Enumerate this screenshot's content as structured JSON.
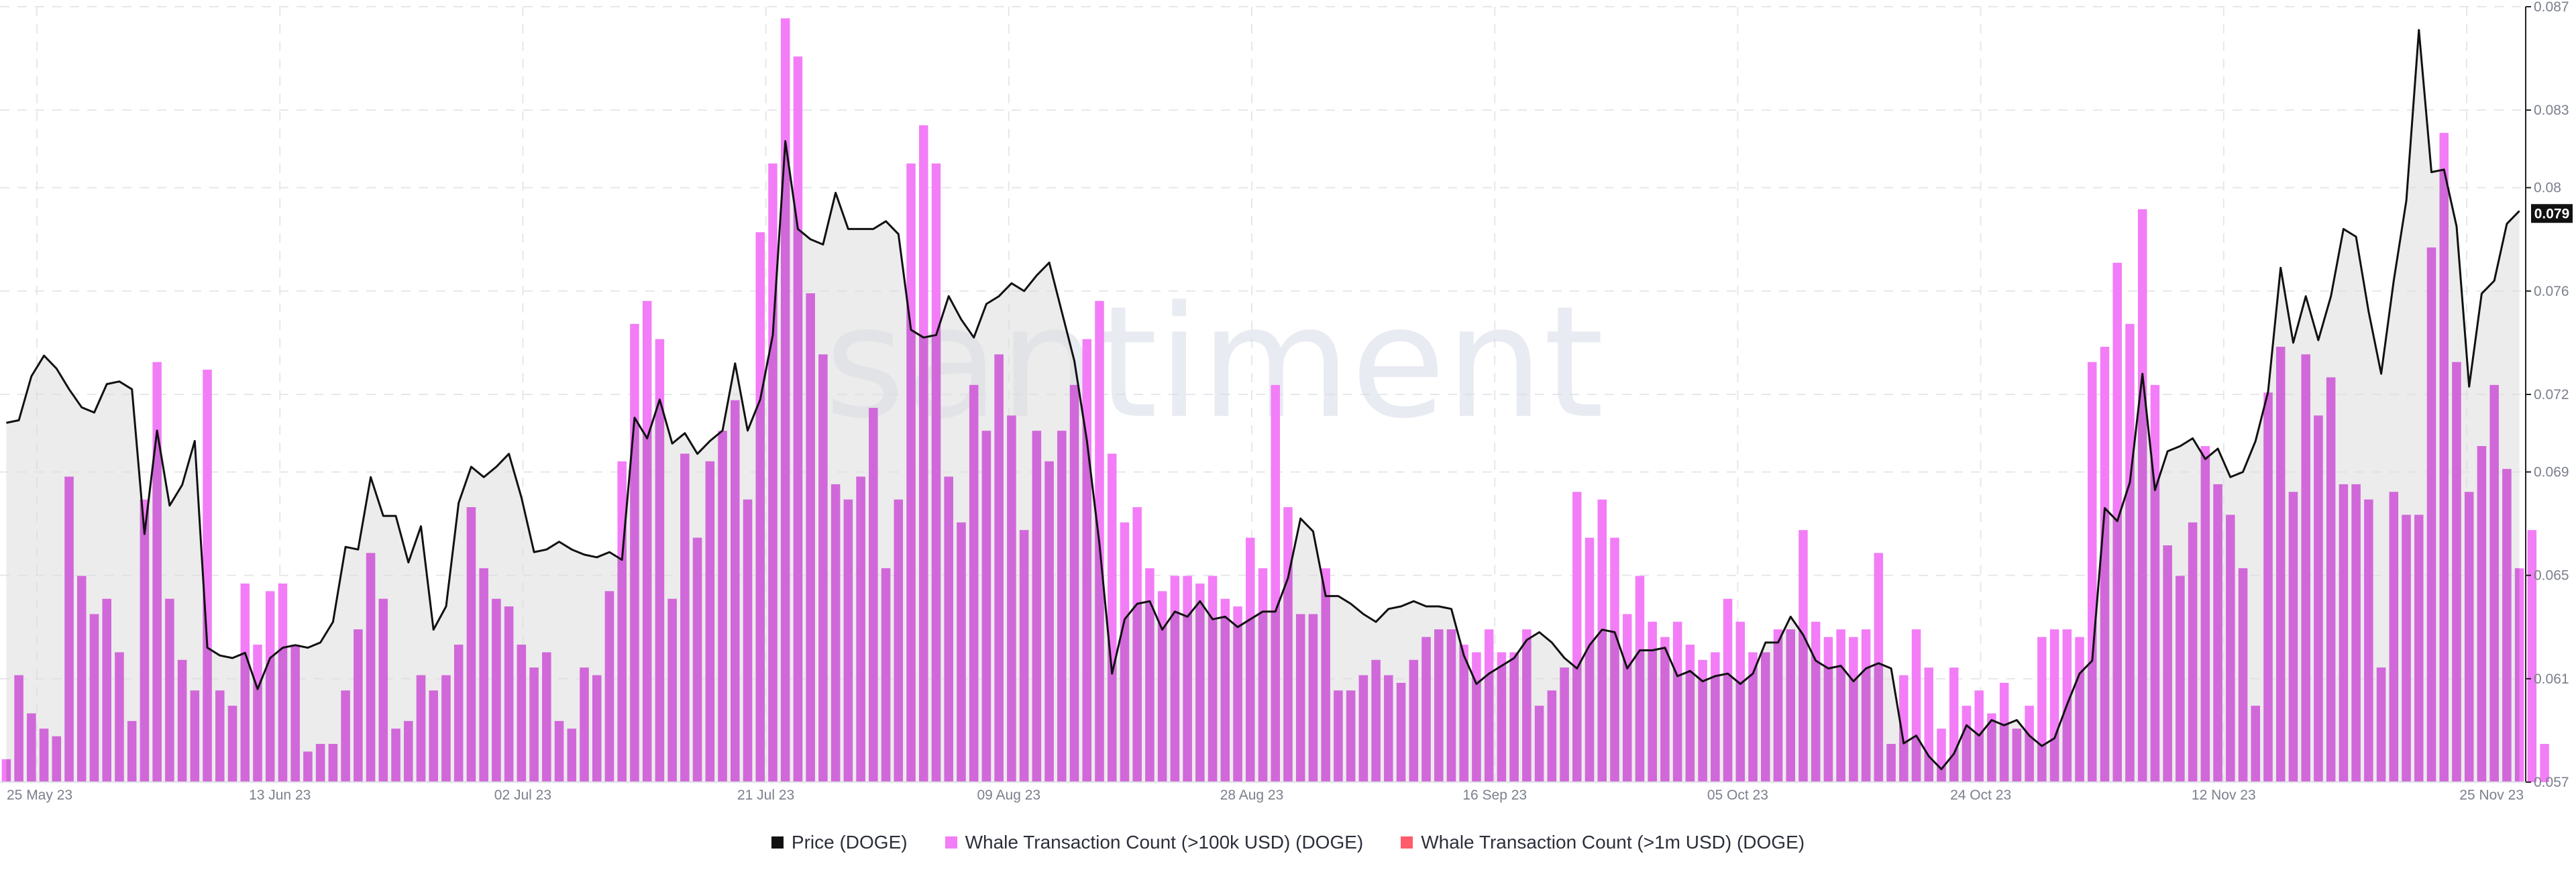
{
  "watermark": "santiment",
  "chart_data": {
    "type": "bar+line",
    "x_tick_labels": [
      "25 May 23",
      "13 Jun 23",
      "02 Jul 23",
      "21 Jul 23",
      "09 Aug 23",
      "28 Aug 23",
      "16 Sep 23",
      "05 Oct 23",
      "24 Oct 23",
      "12 Nov 23",
      "25 Nov 23"
    ],
    "x_range": [
      "2023-05-25",
      "2023-11-25"
    ],
    "y_ticks": [
      "0.087",
      "0.083",
      "0.08",
      "0.076",
      "0.072",
      "0.069",
      "0.065",
      "0.061",
      "0.057"
    ],
    "y_range": [
      0.057,
      0.087
    ],
    "current_price_label": "0.079",
    "grid": true,
    "legend_position": "bottom",
    "series": [
      {
        "name": "Price (DOGE)",
        "kind": "area-line",
        "color": "#111111",
        "fill": "#dcdcdc",
        "y_axis": "right",
        "values": [
          0.0709,
          0.071,
          0.0727,
          0.0735,
          0.073,
          0.0722,
          0.0715,
          0.0713,
          0.0724,
          0.0725,
          0.0722,
          0.0666,
          0.0706,
          0.0677,
          0.0685,
          0.0702,
          0.0622,
          0.0619,
          0.0618,
          0.062,
          0.0606,
          0.0618,
          0.0622,
          0.0623,
          0.0622,
          0.0624,
          0.0632,
          0.0661,
          0.066,
          0.0688,
          0.0673,
          0.0673,
          0.0655,
          0.0669,
          0.0629,
          0.0638,
          0.0678,
          0.0692,
          0.0688,
          0.0692,
          0.0697,
          0.068,
          0.0659,
          0.066,
          0.0663,
          0.066,
          0.0658,
          0.0657,
          0.0659,
          0.0656,
          0.0711,
          0.0703,
          0.0718,
          0.0701,
          0.0705,
          0.0697,
          0.0702,
          0.0706,
          0.0732,
          0.0706,
          0.0718,
          0.0743,
          0.0818,
          0.0784,
          0.078,
          0.0778,
          0.0798,
          0.0784,
          0.0784,
          0.0784,
          0.0787,
          0.0782,
          0.0745,
          0.0742,
          0.0743,
          0.0758,
          0.0749,
          0.0742,
          0.0755,
          0.0758,
          0.0763,
          0.076,
          0.0766,
          0.0771,
          0.0752,
          0.0733,
          0.0702,
          0.0662,
          0.0612,
          0.0633,
          0.0639,
          0.064,
          0.0629,
          0.0636,
          0.0634,
          0.064,
          0.0633,
          0.0634,
          0.063,
          0.0633,
          0.0636,
          0.0636,
          0.0649,
          0.0672,
          0.0667,
          0.0642,
          0.0642,
          0.0639,
          0.0635,
          0.0632,
          0.0637,
          0.0638,
          0.064,
          0.0638,
          0.0638,
          0.0637,
          0.0619,
          0.0608,
          0.0612,
          0.0615,
          0.0618,
          0.0625,
          0.0628,
          0.0624,
          0.0618,
          0.0614,
          0.0623,
          0.0629,
          0.0628,
          0.0614,
          0.0621,
          0.0621,
          0.0622,
          0.0611,
          0.0613,
          0.0609,
          0.0611,
          0.0612,
          0.0608,
          0.0612,
          0.0624,
          0.0624,
          0.0634,
          0.0627,
          0.0617,
          0.0614,
          0.0615,
          0.0609,
          0.0614,
          0.0616,
          0.0614,
          0.0585,
          0.0588,
          0.058,
          0.0575,
          0.0581,
          0.0592,
          0.0588,
          0.0594,
          0.0592,
          0.0594,
          0.0588,
          0.0584,
          0.0587,
          0.06,
          0.0612,
          0.0617,
          0.0676,
          0.0671,
          0.0686,
          0.0728,
          0.0683,
          0.0698,
          0.07,
          0.0703,
          0.0695,
          0.0699,
          0.0688,
          0.069,
          0.0702,
          0.0721,
          0.0769,
          0.074,
          0.0758,
          0.0741,
          0.0758,
          0.0784,
          0.0781,
          0.0752,
          0.0728,
          0.0764,
          0.0795,
          0.0861,
          0.0806,
          0.0807,
          0.0785,
          0.0723,
          0.0759,
          0.0764,
          0.0786,
          0.0791
        ]
      },
      {
        "name": "Whale Transaction Count (>100k USD) (DOGE)",
        "kind": "bar",
        "color": "#f27df7",
        "overlap_color": "#d168d9",
        "y_axis": "left",
        "y_range": [
          0,
          100
        ],
        "values": [
          3,
          14,
          9,
          7,
          6,
          40,
          27,
          22,
          24,
          17,
          8,
          37,
          55,
          24,
          16,
          12,
          54,
          12,
          10,
          26,
          18,
          25,
          26,
          18,
          4,
          5,
          5,
          12,
          20,
          30,
          24,
          7,
          8,
          14,
          12,
          14,
          18,
          36,
          28,
          24,
          23,
          18,
          15,
          17,
          8,
          7,
          15,
          14,
          25,
          42,
          60,
          63,
          58,
          24,
          43,
          32,
          42,
          46,
          50,
          37,
          72,
          81,
          100,
          95,
          64,
          56,
          39,
          37,
          40,
          49,
          28,
          37,
          81,
          86,
          81,
          40,
          34,
          52,
          46,
          56,
          48,
          33,
          46,
          42,
          46,
          52,
          58,
          63,
          43,
          34,
          36,
          28,
          25,
          27,
          27,
          26,
          27,
          24,
          23,
          32,
          28,
          52,
          36,
          22,
          22,
          28,
          12,
          12,
          14,
          16,
          14,
          13,
          16,
          19,
          20,
          20,
          18,
          17,
          20,
          17,
          17,
          20,
          10,
          12,
          15,
          38,
          32,
          37,
          32,
          22,
          27,
          21,
          19,
          21,
          18,
          16,
          17,
          24,
          21,
          17,
          17,
          20,
          20,
          33,
          21,
          19,
          20,
          19,
          20,
          30,
          5,
          14,
          20,
          15,
          7,
          15,
          10,
          12,
          9,
          13,
          7,
          10,
          19,
          20,
          20,
          19,
          55,
          57,
          68,
          60,
          75,
          52,
          31,
          27,
          34,
          44,
          39,
          35,
          28,
          10,
          51,
          57,
          38,
          56,
          48,
          53,
          39,
          39,
          37,
          15,
          38,
          35,
          35,
          70,
          85,
          55,
          38,
          44,
          52,
          41,
          28,
          33,
          5
        ]
      },
      {
        "name": "Whale Transaction Count (>1m USD) (DOGE)",
        "kind": "bar",
        "color": "#ff5b6a",
        "values": []
      }
    ]
  }
}
